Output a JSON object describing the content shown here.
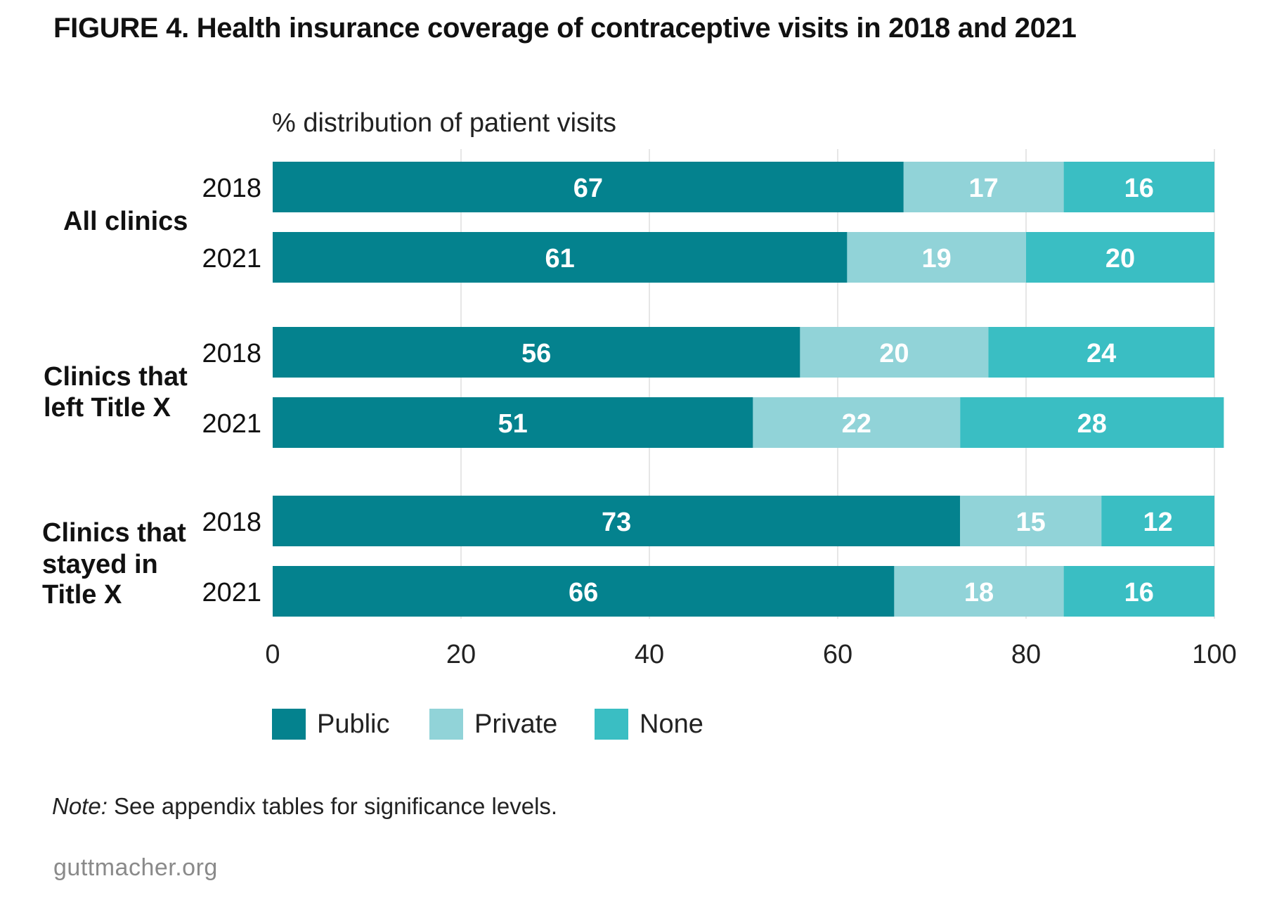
{
  "title": "FIGURE 4. Health insurance coverage of contraceptive visits in 2018 and 2021",
  "note": {
    "label": "Note:",
    "text": " See appendix tables for significance levels."
  },
  "source": "guttmacher.org",
  "chart_data": {
    "type": "bar",
    "orientation": "horizontal",
    "stacked": true,
    "subtitle": "% distribution of patient visits",
    "xlim": [
      0,
      100
    ],
    "x_ticks": [
      0,
      20,
      40,
      60,
      80,
      100
    ],
    "grid": true,
    "legend_position": "bottom-left",
    "groups": [
      {
        "label": "All clinics",
        "lines": [
          "All clinics"
        ]
      },
      {
        "label": "Clinics that left Title X",
        "lines": [
          "Clinics that",
          "left Title X"
        ]
      },
      {
        "label": "Clinics that stayed in Title X",
        "lines": [
          "Clinics that",
          "stayed in",
          "Title X"
        ]
      }
    ],
    "categories": [
      "2018",
      "2021",
      "2018",
      "2021",
      "2018",
      "2021"
    ],
    "category_group": [
      0,
      0,
      1,
      1,
      2,
      2
    ],
    "series": [
      {
        "name": "Public",
        "color": "#04828e",
        "label_color": "#ffffff",
        "values": [
          67,
          61,
          56,
          51,
          73,
          66
        ]
      },
      {
        "name": "Private",
        "color": "#91d3d8",
        "label_color": "#ffffff",
        "values": [
          17,
          19,
          20,
          22,
          15,
          18
        ]
      },
      {
        "name": "None",
        "color": "#3abec3",
        "label_color": "#ffffff",
        "values": [
          16,
          20,
          24,
          28,
          12,
          16
        ]
      }
    ]
  }
}
